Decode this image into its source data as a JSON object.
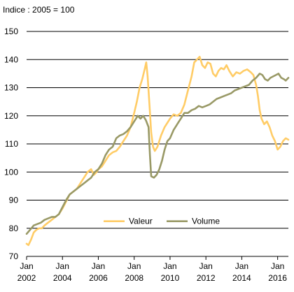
{
  "chart_data": {
    "type": "line",
    "unit_label": "Indice : 2005 = 100",
    "ylim": [
      70,
      150
    ],
    "yticks": [
      70,
      80,
      90,
      100,
      110,
      120,
      130,
      140,
      150
    ],
    "xlim": [
      2002.0,
      2016.6
    ],
    "xticks": [
      {
        "value": 2002,
        "line1": "Jan",
        "line2": "2002"
      },
      {
        "value": 2004,
        "line1": "Jan",
        "line2": "2004"
      },
      {
        "value": 2006,
        "line1": "Jan",
        "line2": "2006"
      },
      {
        "value": 2008,
        "line1": "Jan",
        "line2": "2008"
      },
      {
        "value": 2010,
        "line1": "Jan",
        "line2": "2010"
      },
      {
        "value": 2012,
        "line1": "Jan",
        "line2": "2012"
      },
      {
        "value": 2014,
        "line1": "Jan",
        "line2": "2014"
      },
      {
        "value": 2016,
        "line1": "Jan",
        "line2": "2016"
      }
    ],
    "grid": "horizontal",
    "legend_position": "bottom-center",
    "series": [
      {
        "name": "Valeur",
        "color": "#FFCC66",
        "points": [
          [
            2002.0,
            74.5
          ],
          [
            2002.1,
            74.0
          ],
          [
            2002.25,
            76.0
          ],
          [
            2002.4,
            78.5
          ],
          [
            2002.55,
            79.5
          ],
          [
            2002.7,
            80.0
          ],
          [
            2002.85,
            80.0
          ],
          [
            2003.0,
            81.0
          ],
          [
            2003.2,
            82.0
          ],
          [
            2003.4,
            83.0
          ],
          [
            2003.6,
            84.0
          ],
          [
            2003.8,
            85.0
          ],
          [
            2004.0,
            87.0
          ],
          [
            2004.2,
            89.5
          ],
          [
            2004.4,
            92.0
          ],
          [
            2004.6,
            93.0
          ],
          [
            2004.8,
            94.0
          ],
          [
            2005.0,
            96.0
          ],
          [
            2005.2,
            98.0
          ],
          [
            2005.4,
            100.0
          ],
          [
            2005.6,
            101.0
          ],
          [
            2005.75,
            99.0
          ],
          [
            2005.9,
            100.0
          ],
          [
            2006.0,
            101.0
          ],
          [
            2006.2,
            102.0
          ],
          [
            2006.4,
            104.0
          ],
          [
            2006.6,
            106.0
          ],
          [
            2006.8,
            107.0
          ],
          [
            2007.0,
            107.5
          ],
          [
            2007.2,
            109.0
          ],
          [
            2007.4,
            111.0
          ],
          [
            2007.6,
            113.0
          ],
          [
            2007.8,
            116.0
          ],
          [
            2008.0,
            121.0
          ],
          [
            2008.15,
            125.0
          ],
          [
            2008.3,
            130.0
          ],
          [
            2008.45,
            133.0
          ],
          [
            2008.6,
            137.0
          ],
          [
            2008.67,
            139.0
          ],
          [
            2008.75,
            134.0
          ],
          [
            2008.85,
            124.0
          ],
          [
            2008.95,
            114.0
          ],
          [
            2009.05,
            109.0
          ],
          [
            2009.15,
            107.5
          ],
          [
            2009.3,
            109.0
          ],
          [
            2009.5,
            113.0
          ],
          [
            2009.7,
            116.0
          ],
          [
            2009.9,
            118.0
          ],
          [
            2010.0,
            119.0
          ],
          [
            2010.2,
            120.5
          ],
          [
            2010.4,
            120.0
          ],
          [
            2010.6,
            121.0
          ],
          [
            2010.8,
            124.0
          ],
          [
            2011.0,
            129.0
          ],
          [
            2011.2,
            134.0
          ],
          [
            2011.35,
            139.0
          ],
          [
            2011.5,
            140.0
          ],
          [
            2011.65,
            141.0
          ],
          [
            2011.8,
            138.0
          ],
          [
            2011.95,
            137.0
          ],
          [
            2012.1,
            139.0
          ],
          [
            2012.25,
            138.5
          ],
          [
            2012.4,
            135.0
          ],
          [
            2012.55,
            134.0
          ],
          [
            2012.7,
            136.0
          ],
          [
            2012.85,
            137.0
          ],
          [
            2013.0,
            136.5
          ],
          [
            2013.15,
            138.0
          ],
          [
            2013.3,
            136.0
          ],
          [
            2013.5,
            134.0
          ],
          [
            2013.7,
            135.5
          ],
          [
            2013.9,
            135.0
          ],
          [
            2014.1,
            136.0
          ],
          [
            2014.3,
            136.5
          ],
          [
            2014.5,
            135.5
          ],
          [
            2014.65,
            134.5
          ],
          [
            2014.8,
            131.0
          ],
          [
            2014.9,
            127.0
          ],
          [
            2015.0,
            122.0
          ],
          [
            2015.1,
            119.0
          ],
          [
            2015.25,
            117.0
          ],
          [
            2015.4,
            118.0
          ],
          [
            2015.55,
            116.0
          ],
          [
            2015.7,
            113.0
          ],
          [
            2015.85,
            111.0
          ],
          [
            2016.0,
            108.0
          ],
          [
            2016.15,
            109.0
          ],
          [
            2016.3,
            111.0
          ],
          [
            2016.45,
            112.0
          ],
          [
            2016.6,
            111.5
          ]
        ]
      },
      {
        "name": "Volume",
        "color": "#999966",
        "points": [
          [
            2002.0,
            78.0
          ],
          [
            2002.2,
            79.5
          ],
          [
            2002.4,
            81.0
          ],
          [
            2002.6,
            81.5
          ],
          [
            2002.8,
            82.0
          ],
          [
            2003.0,
            83.0
          ],
          [
            2003.2,
            83.5
          ],
          [
            2003.4,
            84.0
          ],
          [
            2003.6,
            84.0
          ],
          [
            2003.8,
            85.0
          ],
          [
            2004.0,
            87.5
          ],
          [
            2004.2,
            90.0
          ],
          [
            2004.4,
            92.0
          ],
          [
            2004.6,
            93.0
          ],
          [
            2004.8,
            94.0
          ],
          [
            2005.0,
            95.0
          ],
          [
            2005.2,
            96.0
          ],
          [
            2005.4,
            97.0
          ],
          [
            2005.6,
            98.0
          ],
          [
            2005.8,
            100.0
          ],
          [
            2006.0,
            101.0
          ],
          [
            2006.2,
            103.0
          ],
          [
            2006.4,
            106.0
          ],
          [
            2006.6,
            108.0
          ],
          [
            2006.8,
            109.0
          ],
          [
            2007.0,
            112.0
          ],
          [
            2007.2,
            113.0
          ],
          [
            2007.4,
            113.5
          ],
          [
            2007.6,
            114.5
          ],
          [
            2007.8,
            116.0
          ],
          [
            2008.0,
            118.0
          ],
          [
            2008.2,
            120.0
          ],
          [
            2008.35,
            119.0
          ],
          [
            2008.5,
            120.0
          ],
          [
            2008.65,
            118.5
          ],
          [
            2008.8,
            116.0
          ],
          [
            2008.88,
            106.0
          ],
          [
            2008.95,
            98.5
          ],
          [
            2009.1,
            98.0
          ],
          [
            2009.25,
            99.0
          ],
          [
            2009.4,
            101.0
          ],
          [
            2009.55,
            104.0
          ],
          [
            2009.7,
            108.0
          ],
          [
            2009.85,
            111.0
          ],
          [
            2010.0,
            112.0
          ],
          [
            2010.2,
            115.0
          ],
          [
            2010.4,
            117.0
          ],
          [
            2010.6,
            119.0
          ],
          [
            2010.8,
            121.0
          ],
          [
            2011.0,
            121.0
          ],
          [
            2011.2,
            122.0
          ],
          [
            2011.4,
            122.5
          ],
          [
            2011.6,
            123.5
          ],
          [
            2011.8,
            123.0
          ],
          [
            2012.0,
            123.5
          ],
          [
            2012.2,
            124.0
          ],
          [
            2012.4,
            125.0
          ],
          [
            2012.6,
            126.0
          ],
          [
            2012.8,
            126.5
          ],
          [
            2013.0,
            127.0
          ],
          [
            2013.2,
            127.5
          ],
          [
            2013.4,
            128.0
          ],
          [
            2013.6,
            129.0
          ],
          [
            2013.8,
            129.5
          ],
          [
            2014.0,
            130.0
          ],
          [
            2014.2,
            130.5
          ],
          [
            2014.4,
            131.0
          ],
          [
            2014.6,
            132.5
          ],
          [
            2014.8,
            133.5
          ],
          [
            2015.0,
            135.0
          ],
          [
            2015.15,
            134.5
          ],
          [
            2015.3,
            133.0
          ],
          [
            2015.45,
            132.5
          ],
          [
            2015.6,
            133.5
          ],
          [
            2015.75,
            134.0
          ],
          [
            2015.9,
            134.5
          ],
          [
            2016.05,
            135.0
          ],
          [
            2016.2,
            133.5
          ],
          [
            2016.35,
            133.0
          ],
          [
            2016.45,
            132.5
          ],
          [
            2016.6,
            133.5
          ]
        ]
      }
    ]
  }
}
